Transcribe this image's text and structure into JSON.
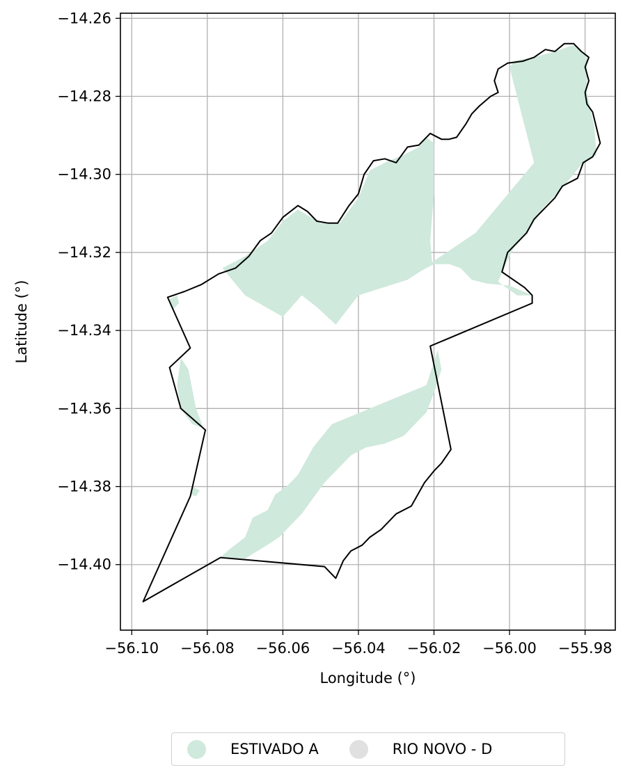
{
  "chart_data": {
    "type": "map",
    "xlabel": "Longitude (°)",
    "ylabel": "Latitude (°)",
    "xlim": [
      -56.103,
      -55.972
    ],
    "ylim": [
      -14.4168,
      -14.2587
    ],
    "xticks": [
      -56.1,
      -56.08,
      -56.06,
      -56.04,
      -56.02,
      -56.0,
      -55.98
    ],
    "xtick_labels": [
      "−56.10",
      "−56.08",
      "−56.06",
      "−56.04",
      "−56.02",
      "−56.00",
      "−55.98"
    ],
    "yticks": [
      -14.26,
      -14.28,
      -14.3,
      -14.32,
      -14.34,
      -14.36,
      -14.38,
      -14.4
    ],
    "ytick_labels": [
      "−14.26",
      "−14.28",
      "−14.30",
      "−14.32",
      "−14.34",
      "−14.36",
      "−14.38",
      "−14.40"
    ],
    "grid": true,
    "legend_placement": "bottom-center",
    "legend": [
      {
        "label": "ESTIVADO A",
        "color": "#cfe9dc"
      },
      {
        "label": "RIO NOVO - D",
        "color": "#e0e0e0"
      }
    ],
    "boundary": {
      "stroke": "#000000",
      "lonlat": [
        [
          -56.0905,
          -14.3315
        ],
        [
          -56.086,
          -14.33
        ],
        [
          -56.0815,
          -14.3282
        ],
        [
          -56.077,
          -14.3255
        ],
        [
          -56.0725,
          -14.324
        ],
        [
          -56.069,
          -14.321
        ],
        [
          -56.066,
          -14.317
        ],
        [
          -56.063,
          -14.315
        ],
        [
          -56.06,
          -14.311
        ],
        [
          -56.056,
          -14.308
        ],
        [
          -56.0535,
          -14.3095
        ],
        [
          -56.051,
          -14.312
        ],
        [
          -56.048,
          -14.3125
        ],
        [
          -56.0455,
          -14.3125
        ],
        [
          -56.0425,
          -14.308
        ],
        [
          -56.04,
          -14.305
        ],
        [
          -56.0385,
          -14.3
        ],
        [
          -56.036,
          -14.2965
        ],
        [
          -56.033,
          -14.296
        ],
        [
          -56.03,
          -14.297
        ],
        [
          -56.027,
          -14.293
        ],
        [
          -56.024,
          -14.2925
        ],
        [
          -56.021,
          -14.2895
        ],
        [
          -56.018,
          -14.291
        ],
        [
          -56.016,
          -14.291
        ],
        [
          -56.014,
          -14.2905
        ],
        [
          -56.0115,
          -14.287
        ],
        [
          -56.01,
          -14.2845
        ],
        [
          -56.008,
          -14.2825
        ],
        [
          -56.005,
          -14.28
        ],
        [
          -56.003,
          -14.279
        ],
        [
          -56.004,
          -14.276
        ],
        [
          -56.003,
          -14.273
        ],
        [
          -56.0005,
          -14.2715
        ],
        [
          -55.9965,
          -14.271
        ],
        [
          -55.9935,
          -14.27
        ],
        [
          -55.9905,
          -14.268
        ],
        [
          -55.988,
          -14.2685
        ],
        [
          -55.9855,
          -14.2665
        ],
        [
          -55.983,
          -14.2665
        ],
        [
          -55.981,
          -14.2685
        ],
        [
          -55.979,
          -14.27
        ],
        [
          -55.98,
          -14.2725
        ],
        [
          -55.979,
          -14.276
        ],
        [
          -55.98,
          -14.279
        ],
        [
          -55.9795,
          -14.282
        ],
        [
          -55.978,
          -14.284
        ],
        [
          -55.977,
          -14.288
        ],
        [
          -55.976,
          -14.292
        ],
        [
          -55.978,
          -14.2955
        ],
        [
          -55.9805,
          -14.297
        ],
        [
          -55.982,
          -14.301
        ],
        [
          -55.986,
          -14.303
        ],
        [
          -55.988,
          -14.306
        ],
        [
          -55.991,
          -14.309
        ],
        [
          -55.9935,
          -14.3115
        ],
        [
          -55.9955,
          -14.315
        ],
        [
          -55.9985,
          -14.318
        ],
        [
          -56.0005,
          -14.32
        ],
        [
          -56.002,
          -14.325
        ],
        [
          -55.996,
          -14.329
        ],
        [
          -55.994,
          -14.331
        ],
        [
          -55.994,
          -14.333
        ],
        [
          -56.021,
          -14.344
        ],
        [
          -56.0155,
          -14.3705
        ],
        [
          -56.018,
          -14.374
        ],
        [
          -56.02,
          -14.376
        ],
        [
          -56.0225,
          -14.379
        ],
        [
          -56.026,
          -14.385
        ],
        [
          -56.03,
          -14.387
        ],
        [
          -56.034,
          -14.391
        ],
        [
          -56.037,
          -14.393
        ],
        [
          -56.039,
          -14.395
        ],
        [
          -56.042,
          -14.3965
        ],
        [
          -56.044,
          -14.399
        ],
        [
          -56.046,
          -14.4035
        ],
        [
          -56.049,
          -14.4005
        ],
        [
          -56.0765,
          -14.3982
        ],
        [
          -56.097,
          -14.4095
        ],
        [
          -56.0845,
          -14.3825
        ],
        [
          -56.0805,
          -14.3655
        ],
        [
          -56.087,
          -14.36
        ],
        [
          -56.09,
          -14.3495
        ],
        [
          -56.0845,
          -14.3445
        ],
        [
          -56.0905,
          -14.3315
        ]
      ]
    },
    "series": [
      {
        "name": "ESTIVADO A",
        "color": "#cfe9dc",
        "polygons": [
          [
            [
              -56.076,
              -14.324
            ],
            [
              -56.07,
              -14.321
            ],
            [
              -56.064,
              -14.317
            ],
            [
              -56.06,
              -14.312
            ],
            [
              -56.056,
              -14.309
            ],
            [
              -56.05,
              -14.3125
            ],
            [
              -56.045,
              -14.3125
            ],
            [
              -56.04,
              -14.306
            ],
            [
              -56.037,
              -14.299
            ],
            [
              -56.032,
              -14.2965
            ],
            [
              -56.028,
              -14.295
            ],
            [
              -56.024,
              -14.293
            ],
            [
              -56.022,
              -14.2905
            ],
            [
              -56.02,
              -14.292
            ],
            [
              -56.02,
              -14.305
            ],
            [
              -56.021,
              -14.317
            ],
            [
              -56.0205,
              -14.3225
            ],
            [
              -56.009,
              -14.315
            ],
            [
              -55.9935,
              -14.297
            ],
            [
              -56.0,
              -14.2725
            ],
            [
              -55.9985,
              -14.2708
            ],
            [
              -55.9935,
              -14.27
            ],
            [
              -55.988,
              -14.2685
            ],
            [
              -55.983,
              -14.2668
            ],
            [
              -55.9795,
              -14.27
            ],
            [
              -55.9795,
              -14.279
            ],
            [
              -55.9775,
              -14.288
            ],
            [
              -55.977,
              -14.295
            ],
            [
              -55.981,
              -14.2975
            ],
            [
              -55.986,
              -14.3035
            ],
            [
              -55.991,
              -14.3085
            ],
            [
              -55.9955,
              -14.315
            ],
            [
              -55.999,
              -14.319
            ],
            [
              -56.001,
              -14.323
            ],
            [
              -56.003,
              -14.3275
            ],
            [
              -55.998,
              -14.331
            ],
            [
              -55.994,
              -14.331
            ],
            [
              -56.0,
              -14.3285
            ],
            [
              -56.006,
              -14.328
            ],
            [
              -56.01,
              -14.327
            ],
            [
              -56.013,
              -14.324
            ],
            [
              -56.016,
              -14.323
            ],
            [
              -56.02,
              -14.323
            ],
            [
              -56.023,
              -14.3245
            ],
            [
              -56.027,
              -14.327
            ],
            [
              -56.04,
              -14.331
            ],
            [
              -56.046,
              -14.3385
            ],
            [
              -56.051,
              -14.334
            ],
            [
              -56.055,
              -14.331
            ],
            [
              -56.06,
              -14.3365
            ],
            [
              -56.07,
              -14.331
            ],
            [
              -56.076,
              -14.324
            ]
          ],
          [
            [
              -56.09,
              -14.332
            ],
            [
              -56.088,
              -14.331
            ],
            [
              -56.0875,
              -14.333
            ],
            [
              -56.089,
              -14.3345
            ],
            [
              -56.09,
              -14.332
            ]
          ],
          [
            [
              -56.087,
              -14.347
            ],
            [
              -56.085,
              -14.35
            ],
            [
              -56.083,
              -14.36
            ],
            [
              -56.081,
              -14.365
            ],
            [
              -56.084,
              -14.364
            ],
            [
              -56.087,
              -14.36
            ],
            [
              -56.088,
              -14.354
            ],
            [
              -56.087,
              -14.347
            ]
          ],
          [
            [
              -56.084,
              -14.38
            ],
            [
              -56.082,
              -14.381
            ],
            [
              -56.083,
              -14.3825
            ],
            [
              -56.0845,
              -14.382
            ],
            [
              -56.084,
              -14.38
            ]
          ],
          [
            [
              -56.019,
              -14.345
            ],
            [
              -56.022,
              -14.354
            ],
            [
              -56.032,
              -14.358
            ],
            [
              -56.042,
              -14.362
            ],
            [
              -56.047,
              -14.364
            ],
            [
              -56.052,
              -14.37
            ],
            [
              -56.056,
              -14.377
            ],
            [
              -56.059,
              -14.38
            ],
            [
              -56.062,
              -14.382
            ],
            [
              -56.064,
              -14.386
            ],
            [
              -56.068,
              -14.388
            ],
            [
              -56.07,
              -14.393
            ],
            [
              -56.074,
              -14.396
            ],
            [
              -56.077,
              -14.3985
            ],
            [
              -56.0765,
              -14.3982
            ],
            [
              -56.07,
              -14.3985
            ],
            [
              -56.065,
              -14.3955
            ],
            [
              -56.061,
              -14.393
            ],
            [
              -56.058,
              -14.39
            ],
            [
              -56.055,
              -14.387
            ],
            [
              -56.052,
              -14.383
            ],
            [
              -56.049,
              -14.379
            ],
            [
              -56.046,
              -14.376
            ],
            [
              -56.042,
              -14.372
            ],
            [
              -56.038,
              -14.37
            ],
            [
              -56.033,
              -14.369
            ],
            [
              -56.028,
              -14.367
            ],
            [
              -56.025,
              -14.364
            ],
            [
              -56.022,
              -14.361
            ],
            [
              -56.02,
              -14.356
            ],
            [
              -56.018,
              -14.35
            ],
            [
              -56.019,
              -14.345
            ]
          ]
        ]
      }
    ]
  }
}
